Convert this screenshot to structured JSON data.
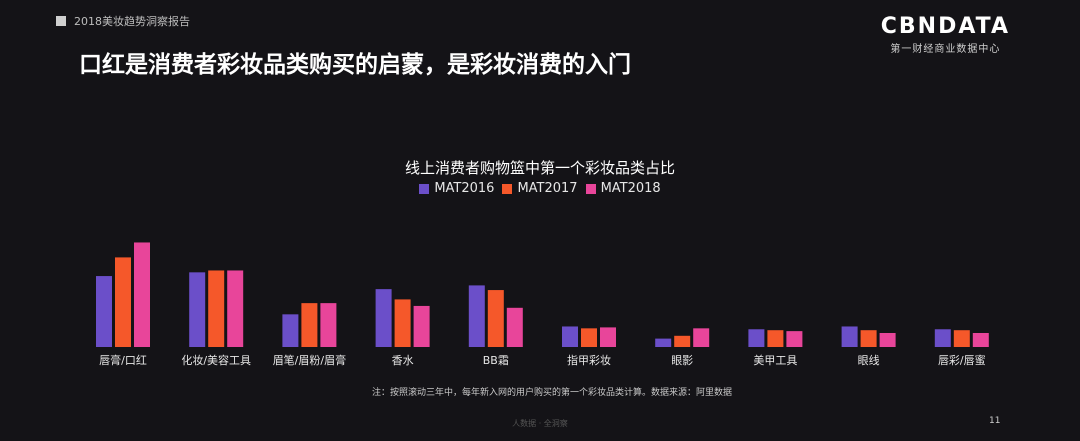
{
  "header": {
    "report_label": "2018美妆趋势洞察报告",
    "brand_logo": "CBNDATA",
    "brand_sub": "第一财经商业数据中心"
  },
  "headline": "口红是消费者彩妆品类购买的启蒙，是彩妆消费的入门",
  "footer": {
    "note": "注：按照滚动三年中，每年新入网的用户购买的第一个彩妆品类计算。数据来源：阿里数据",
    "watermark": "人数据 · 全洞察",
    "page_number": "11"
  },
  "colors": {
    "MAT2016": "#6b4fc9",
    "MAT2017": "#f5582a",
    "MAT2018": "#e8459a"
  },
  "chart_data": {
    "type": "bar",
    "title": "线上消费者购物篮中第一个彩妆品类占比",
    "legend_position": "top-center",
    "grid": false,
    "categories": [
      "唇膏/口红",
      "化妆/美容工具",
      "眉笔/眉粉/眉膏",
      "香水",
      "BB霜",
      "指甲彩妆",
      "眼影",
      "美甲工具",
      "眼线",
      "唇彩/唇蜜"
    ],
    "series": [
      {
        "name": "MAT2016",
        "values": [
          76,
          80,
          35,
          62,
          66,
          22,
          9,
          19,
          22,
          19
        ]
      },
      {
        "name": "MAT2017",
        "values": [
          96,
          82,
          47,
          51,
          61,
          20,
          12,
          18,
          18,
          18
        ]
      },
      {
        "name": "MAT2018",
        "values": [
          112,
          82,
          47,
          44,
          42,
          21,
          20,
          17,
          15,
          15
        ]
      }
    ],
    "ylim": [
      0,
      120
    ]
  }
}
